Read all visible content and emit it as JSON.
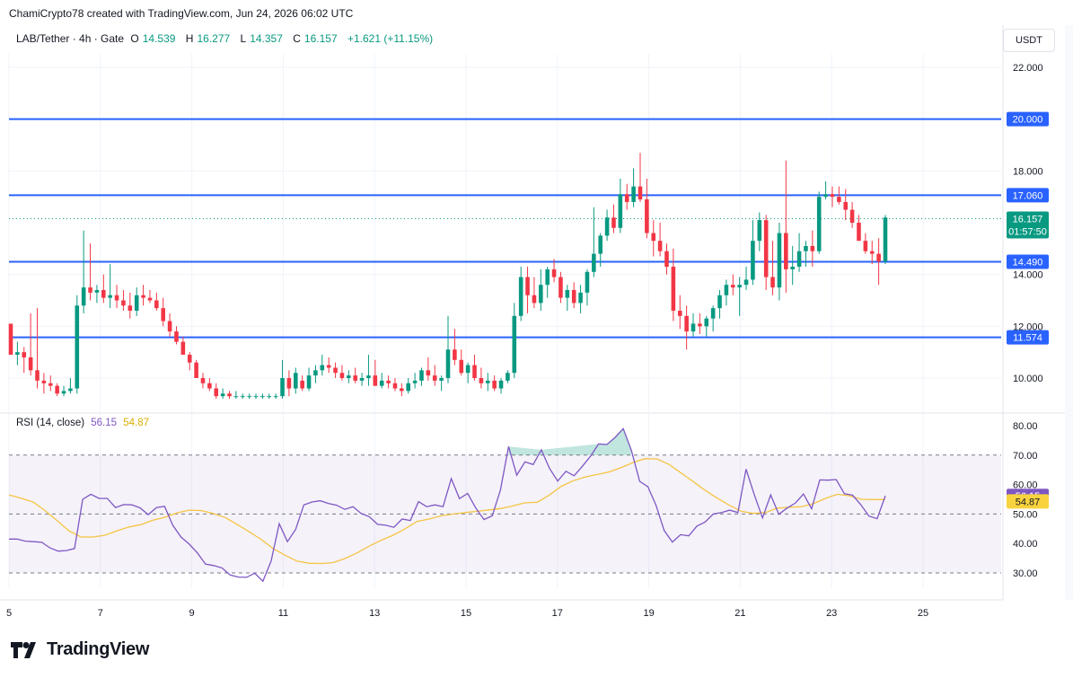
{
  "header": {
    "credit": "ChamiCrypto78 created with TradingView.com, Jun 24, 2026 06:02 UTC"
  },
  "legend": {
    "symbol": "LAB/Tether · 4h · Gate",
    "o_label": "O",
    "o_value": "14.539",
    "h_label": "H",
    "h_value": "16.277",
    "l_label": "L",
    "l_value": "14.357",
    "c_label": "C",
    "c_value": "16.157",
    "change": "+1.621 (+11.15%)"
  },
  "currency": "USDT",
  "rsi_legend": {
    "label": "RSI (14, close)",
    "rsi_value": "56.15",
    "ma_value": "54.87"
  },
  "footer": {
    "brand": "TradingView",
    "logo_icon": "tradingview-logo-icon"
  },
  "colors": {
    "up": "#089981",
    "down": "#f23645",
    "level": "#2962ff",
    "rsi": "#7e57c2",
    "rsi_ma": "#f5c542"
  },
  "chart_data": [
    {
      "type": "candlestick",
      "title": "LAB/Tether · 4h · Gate",
      "ylim": [
        9.4,
        23.5
      ],
      "y_ticks": [
        "22.000",
        "18.000",
        "14.000",
        "12.000",
        "10.000"
      ],
      "x_ticks": [
        "5",
        "7",
        "9",
        "11",
        "13",
        "15",
        "17",
        "19",
        "21",
        "23",
        "25"
      ],
      "x_range_days": [
        5,
        26.5
      ],
      "grid": true,
      "levels": [
        {
          "value": 20.0,
          "label": "20.000"
        },
        {
          "value": 17.06,
          "label": "17.060"
        },
        {
          "value": 14.49,
          "label": "14.490"
        },
        {
          "value": 11.574,
          "label": "11.574"
        }
      ],
      "last_price": {
        "value": 16.157,
        "label": "16.157",
        "countdown": "01:57:50"
      },
      "candles": [
        [
          12.1,
          12.1,
          10.9,
          10.9
        ],
        [
          10.9,
          11.4,
          10.5,
          11.0
        ],
        [
          11.0,
          11.2,
          10.2,
          10.8
        ],
        [
          10.8,
          12.5,
          10.1,
          10.3
        ],
        [
          10.3,
          12.7,
          9.6,
          9.9
        ],
        [
          9.9,
          10.2,
          9.4,
          9.8
        ],
        [
          9.8,
          10.1,
          9.5,
          9.7
        ],
        [
          9.7,
          9.8,
          9.3,
          9.4
        ],
        [
          9.4,
          9.7,
          9.3,
          9.5
        ],
        [
          9.5,
          10.0,
          9.4,
          9.6
        ],
        [
          9.6,
          13.2,
          9.4,
          12.8
        ],
        [
          12.8,
          15.7,
          12.5,
          13.5
        ],
        [
          13.5,
          15.2,
          13.0,
          13.3
        ],
        [
          13.3,
          13.6,
          12.9,
          13.4
        ],
        [
          13.4,
          14.0,
          12.9,
          13.1
        ],
        [
          13.1,
          14.4,
          12.7,
          13.2
        ],
        [
          13.2,
          13.6,
          12.7,
          13.0
        ],
        [
          13.0,
          13.4,
          12.6,
          12.8
        ],
        [
          12.8,
          13.3,
          12.3,
          12.6
        ],
        [
          12.6,
          13.5,
          12.4,
          13.2
        ],
        [
          13.2,
          13.6,
          12.8,
          13.1
        ],
        [
          13.1,
          13.4,
          12.9,
          13.0
        ],
        [
          13.0,
          13.3,
          12.6,
          12.7
        ],
        [
          12.7,
          13.1,
          12.0,
          12.2
        ],
        [
          12.2,
          12.5,
          11.6,
          11.8
        ],
        [
          11.8,
          12.0,
          11.3,
          11.4
        ],
        [
          11.4,
          11.6,
          10.9,
          10.9
        ],
        [
          10.9,
          11.0,
          10.3,
          10.6
        ],
        [
          10.6,
          10.7,
          10.0,
          10.0
        ],
        [
          10.0,
          10.2,
          9.6,
          9.8
        ],
        [
          9.8,
          10.0,
          9.5,
          9.6
        ],
        [
          9.6,
          9.8,
          9.2,
          9.3
        ],
        [
          9.3,
          9.6,
          9.2,
          9.4
        ],
        [
          9.4,
          9.5,
          9.2,
          9.3
        ],
        [
          9.3,
          9.5,
          9.2,
          9.3
        ],
        [
          9.3,
          9.4,
          9.2,
          9.3
        ],
        [
          9.3,
          9.4,
          9.2,
          9.3
        ],
        [
          9.3,
          9.4,
          9.2,
          9.3
        ],
        [
          9.3,
          9.4,
          9.2,
          9.3
        ],
        [
          9.3,
          9.4,
          9.2,
          9.3
        ],
        [
          9.3,
          9.4,
          9.2,
          9.3
        ],
        [
          9.3,
          10.7,
          9.2,
          10.0
        ],
        [
          10.0,
          10.3,
          9.3,
          9.6
        ],
        [
          9.6,
          10.4,
          9.4,
          10.2
        ],
        [
          9.9,
          10.1,
          9.5,
          9.6
        ],
        [
          9.6,
          10.4,
          9.5,
          10.1
        ],
        [
          10.1,
          10.5,
          9.8,
          10.3
        ],
        [
          10.3,
          10.9,
          10.1,
          10.5
        ],
        [
          10.5,
          10.8,
          10.2,
          10.4
        ],
        [
          10.4,
          10.6,
          10.0,
          10.2
        ],
        [
          10.2,
          10.5,
          9.9,
          10.0
        ],
        [
          10.0,
          10.3,
          9.8,
          10.1
        ],
        [
          10.1,
          10.4,
          9.8,
          9.9
        ],
        [
          9.9,
          10.2,
          9.7,
          10.0
        ],
        [
          10.0,
          10.9,
          9.7,
          10.1
        ],
        [
          10.1,
          10.7,
          9.7,
          9.7
        ],
        [
          9.7,
          10.2,
          9.6,
          9.9
        ],
        [
          9.9,
          10.1,
          9.6,
          9.8
        ],
        [
          9.8,
          10.0,
          9.5,
          9.6
        ],
        [
          9.6,
          9.8,
          9.3,
          9.5
        ],
        [
          9.5,
          10.0,
          9.4,
          9.8
        ],
        [
          9.8,
          10.2,
          9.6,
          9.9
        ],
        [
          9.9,
          10.4,
          9.7,
          10.3
        ],
        [
          10.3,
          10.8,
          9.9,
          10.1
        ],
        [
          10.1,
          10.5,
          9.7,
          9.9
        ],
        [
          9.9,
          10.1,
          9.5,
          10.0
        ],
        [
          10.0,
          12.4,
          9.8,
          11.1
        ],
        [
          11.1,
          11.9,
          10.5,
          10.7
        ],
        [
          10.7,
          11.1,
          10.1,
          10.2
        ],
        [
          10.2,
          10.6,
          9.8,
          10.5
        ],
        [
          10.5,
          10.9,
          9.9,
          10.0
        ],
        [
          10.0,
          10.4,
          9.6,
          9.8
        ],
        [
          9.8,
          10.2,
          9.5,
          9.9
        ],
        [
          9.9,
          10.1,
          9.5,
          9.6
        ],
        [
          9.6,
          10.0,
          9.4,
          9.9
        ],
        [
          9.9,
          10.3,
          9.8,
          10.2
        ],
        [
          10.2,
          12.9,
          10.0,
          12.4
        ],
        [
          12.4,
          14.3,
          12.2,
          13.9
        ],
        [
          13.9,
          14.3,
          12.5,
          13.2
        ],
        [
          13.2,
          13.9,
          12.7,
          12.9
        ],
        [
          12.9,
          14.2,
          12.6,
          13.6
        ],
        [
          13.6,
          14.3,
          13.1,
          14.2
        ],
        [
          14.2,
          14.6,
          13.7,
          13.9
        ],
        [
          13.9,
          14.1,
          12.9,
          13.1
        ],
        [
          13.1,
          13.6,
          12.6,
          13.4
        ],
        [
          13.4,
          13.7,
          12.7,
          12.9
        ],
        [
          12.9,
          13.6,
          12.5,
          13.3
        ],
        [
          13.3,
          14.2,
          12.8,
          14.1
        ],
        [
          14.1,
          16.6,
          13.9,
          14.8
        ],
        [
          14.8,
          15.6,
          14.3,
          15.5
        ],
        [
          15.5,
          16.5,
          15.3,
          16.2
        ],
        [
          16.2,
          16.7,
          15.6,
          15.8
        ],
        [
          15.8,
          17.7,
          15.6,
          17.1
        ],
        [
          17.1,
          17.5,
          16.5,
          16.8
        ],
        [
          16.8,
          18.1,
          16.6,
          17.4
        ],
        [
          17.4,
          18.7,
          16.8,
          16.9
        ],
        [
          16.9,
          17.7,
          15.4,
          15.6
        ],
        [
          15.6,
          16.1,
          14.7,
          15.3
        ],
        [
          15.3,
          16.0,
          14.7,
          14.9
        ],
        [
          14.9,
          15.2,
          14.0,
          14.3
        ],
        [
          14.3,
          15.0,
          12.2,
          12.6
        ],
        [
          12.6,
          13.2,
          11.9,
          12.4
        ],
        [
          12.4,
          12.8,
          11.1,
          11.8
        ],
        [
          11.8,
          12.5,
          11.6,
          12.1
        ],
        [
          12.1,
          12.5,
          11.7,
          12.0
        ],
        [
          12.0,
          12.4,
          11.6,
          12.3
        ],
        [
          12.3,
          12.8,
          11.8,
          12.7
        ],
        [
          12.7,
          13.4,
          12.3,
          13.2
        ],
        [
          13.2,
          13.8,
          12.8,
          13.6
        ],
        [
          13.6,
          14.0,
          13.2,
          13.5
        ],
        [
          13.5,
          13.9,
          12.4,
          13.6
        ],
        [
          13.6,
          14.3,
          13.4,
          13.8
        ],
        [
          13.8,
          16.1,
          13.6,
          15.3
        ],
        [
          15.3,
          16.4,
          14.9,
          16.1
        ],
        [
          16.1,
          16.3,
          13.4,
          13.9
        ],
        [
          13.9,
          15.3,
          13.2,
          13.5
        ],
        [
          13.5,
          16.0,
          13.0,
          15.6
        ],
        [
          15.6,
          18.4,
          13.3,
          14.2
        ],
        [
          14.2,
          15.1,
          13.6,
          14.3
        ],
        [
          14.3,
          15.6,
          14.1,
          14.9
        ],
        [
          14.9,
          15.3,
          14.3,
          15.1
        ],
        [
          15.1,
          15.7,
          14.3,
          14.9
        ],
        [
          14.9,
          17.2,
          14.8,
          17.0
        ],
        [
          17.0,
          17.6,
          16.9,
          17.1
        ],
        [
          17.1,
          17.4,
          16.6,
          17.0
        ],
        [
          17.0,
          17.4,
          16.7,
          16.8
        ],
        [
          16.8,
          17.3,
          16.1,
          16.5
        ],
        [
          16.5,
          16.8,
          15.8,
          16.0
        ],
        [
          16.0,
          16.3,
          15.4,
          15.3
        ],
        [
          15.3,
          15.6,
          14.8,
          14.9
        ],
        [
          14.9,
          15.3,
          14.4,
          14.8
        ],
        [
          14.8,
          15.4,
          13.6,
          14.5
        ],
        [
          14.5,
          16.3,
          14.4,
          16.2
        ]
      ]
    },
    {
      "type": "line",
      "title": "RSI (14, close)",
      "ylim": [
        26,
        82
      ],
      "y_ticks": [
        "80.00",
        "70.00",
        "60.00",
        "50.00",
        "40.00",
        "30.00"
      ],
      "bands": {
        "upper": 70,
        "middle": 50,
        "lower": 30
      },
      "series": [
        {
          "name": "RSI",
          "value_label": "56.15",
          "values": [
            41.5,
            41.5,
            40.8,
            40.6,
            40.4,
            38.5,
            37.4,
            37.6,
            38.3,
            55.0,
            56.7,
            55.3,
            55.3,
            52.2,
            53.2,
            53.1,
            52.1,
            49.8,
            52.2,
            52.6,
            46.2,
            42.2,
            39.8,
            36.8,
            33.0,
            32.5,
            31.7,
            29.3,
            28.6,
            28.5,
            29.9,
            27.2,
            34.0,
            46.7,
            40.6,
            44.8,
            53.1,
            54.1,
            54.5,
            53.6,
            53.0,
            51.6,
            52.5,
            50.2,
            49.1,
            46.5,
            46.2,
            45.5,
            48.3,
            47.8,
            54.2,
            52.5,
            53.1,
            52.5,
            62.0,
            55.2,
            57.0,
            52.0,
            48.1,
            49.4,
            58.1,
            72.9,
            63.2,
            67.7,
            66.8,
            71.8,
            65.5,
            61.2,
            64.5,
            63.0,
            66.2,
            69.6,
            73.8,
            73.6,
            76.0,
            79.0,
            71.6,
            61.1,
            59.3,
            53.0,
            44.4,
            40.5,
            43.0,
            42.6,
            45.9,
            47.3,
            50.0,
            50.5,
            51.3,
            50.5,
            65.2,
            56.5,
            48.7,
            56.5,
            49.9,
            52.0,
            53.7,
            56.8,
            51.8,
            61.6,
            61.5,
            61.7,
            56.9,
            56.4,
            53.2,
            49.3,
            48.4,
            56.2
          ]
        },
        {
          "name": "RSI-based MA",
          "value_label": "54.87",
          "values": [
            56.5,
            55.4,
            54.1,
            51.2,
            47.8,
            44.3,
            42.2,
            42.2,
            42.8,
            44.3,
            45.6,
            46.4,
            47.9,
            48.9,
            50.4,
            51.3,
            51.2,
            50.2,
            48.8,
            46.5,
            44.0,
            41.4,
            38.3,
            36.0,
            34.0,
            33.3,
            33.2,
            33.5,
            34.9,
            36.8,
            39.1,
            41.1,
            42.8,
            45.0,
            47.5,
            48.3,
            49.4,
            50.0,
            50.5,
            50.9,
            51.4,
            51.9,
            52.8,
            53.8,
            54.0,
            56.4,
            59.4,
            61.3,
            62.6,
            63.4,
            64.3,
            65.8,
            67.5,
            68.8,
            68.7,
            66.8,
            63.9,
            61.0,
            58.0,
            55.4,
            53.0,
            50.9,
            50.2,
            50.5,
            52.0,
            52.3,
            52.5,
            53.5,
            55.3,
            56.7,
            56.2,
            55.0,
            54.9,
            54.9
          ]
        }
      ]
    }
  ]
}
